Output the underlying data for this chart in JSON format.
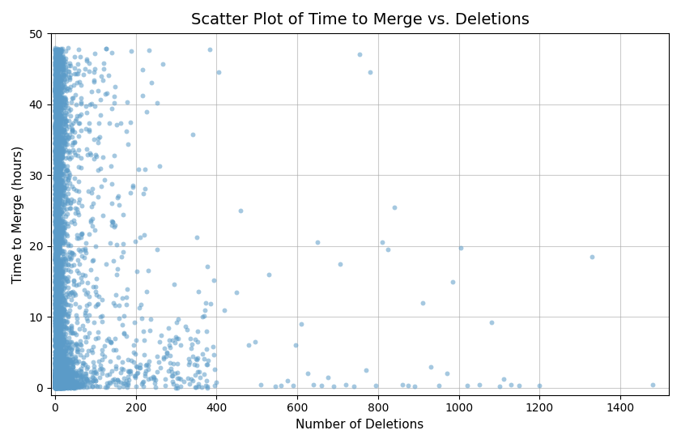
{
  "title": "Scatter Plot of Time to Merge vs. Deletions",
  "xlabel": "Number of Deletions",
  "ylabel": "Time to Merge (hours)",
  "xlim": [
    -10,
    1520
  ],
  "ylim": [
    -1,
    50
  ],
  "yticks": [
    0,
    10,
    20,
    30,
    40,
    50
  ],
  "xticks": [
    0,
    200,
    400,
    600,
    800,
    1000,
    1200,
    1400
  ],
  "point_color": "#5b9bc8",
  "point_alpha": 0.55,
  "point_size": 18,
  "grid_color": "#aaaaaa",
  "grid_alpha": 0.6,
  "background_color": "#ffffff",
  "title_fontsize": 14,
  "label_fontsize": 11,
  "seed": 12345
}
